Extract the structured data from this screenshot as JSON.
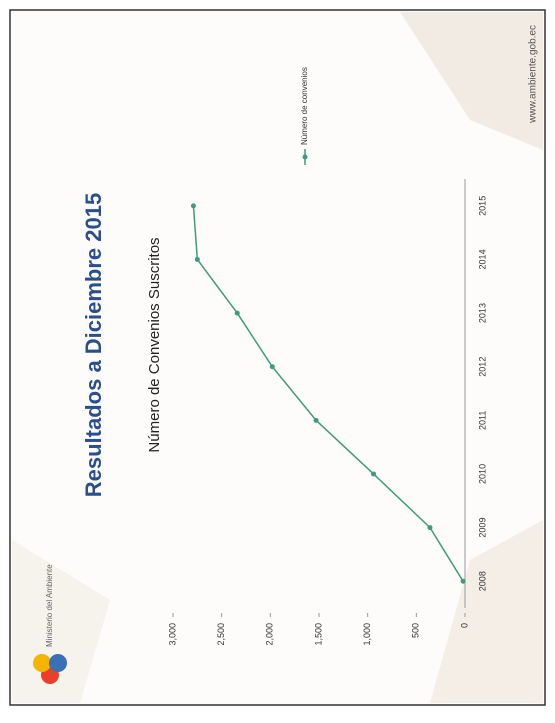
{
  "logo": {
    "text": "Ministerio del Ambiente"
  },
  "footer": {
    "url": "www.ambiente.gob.ec"
  },
  "chart_data": {
    "type": "line",
    "title": "Resultados a Diciembre 2015",
    "subtitle": "Número de Convenios Suscritos",
    "categories": [
      "2008",
      "2009",
      "2010",
      "2011",
      "2012",
      "2013",
      "2014",
      "2015"
    ],
    "series": [
      {
        "name": "Número de convenios",
        "color": "#3f9a80",
        "values": [
          20,
          360,
          940,
          1530,
          1980,
          2340,
          2750,
          2790
        ]
      }
    ],
    "ylim": [
      0,
      3000
    ],
    "yticks": [
      0,
      500,
      {
        "value": 1000,
        "label": "1,000"
      },
      {
        "value": 1500,
        "label": "1,500"
      },
      {
        "value": 2000,
        "label": "2,000"
      },
      {
        "value": 2500,
        "label": "2,500"
      },
      {
        "value": 3000,
        "label": "3,000"
      }
    ],
    "grid": false,
    "legend": "right"
  }
}
